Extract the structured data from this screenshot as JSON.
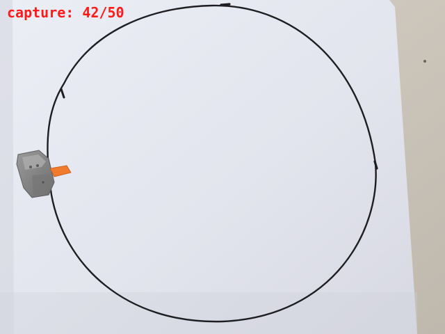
{
  "overlay": {
    "capture_text": "capture: 42/50",
    "color": "#ff1a1a"
  },
  "scene": {
    "paper_color": "#e6e7ef",
    "tabletop_color": "#cfc9bf",
    "circle_line_color": "#1e1e22",
    "robot_color": "#8c8c8c",
    "pen_tip_color": "#f07a2e"
  }
}
